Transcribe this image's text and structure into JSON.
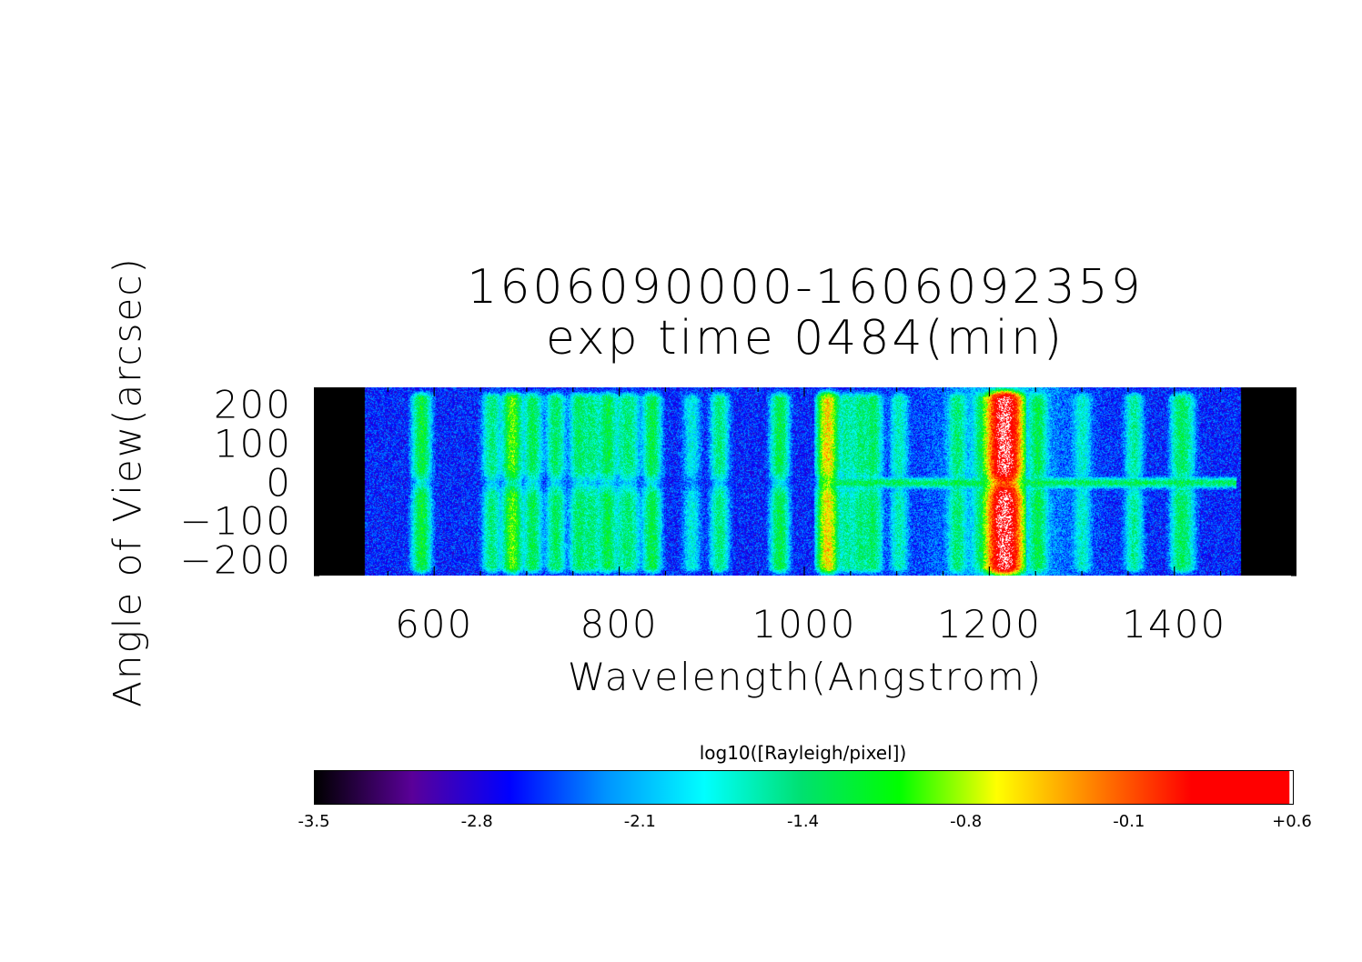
{
  "chart_data": {
    "type": "heatmap",
    "title": [
      "1606090000-1606092359",
      "exp time 0484(min)"
    ],
    "xlabel": "Wavelength(Angstrom)",
    "ylabel": "Angle of View(arcsec)",
    "xlim": [
      470,
      1532
    ],
    "ylim": [
      -240,
      245
    ],
    "x_ticks": [
      600,
      800,
      1000,
      1200,
      1400
    ],
    "y_ticks": [
      200,
      100,
      0,
      -100,
      -200
    ],
    "y_tick_labels": [
      "200",
      "100",
      "0",
      "−100",
      "−200"
    ],
    "detector_range": [
      525,
      1472
    ],
    "background_log": -2.6,
    "spatial_band": {
      "from": 1015,
      "to": 1467,
      "angle": 0,
      "peak_log": -1.4
    },
    "emission_lines": [
      {
        "wavelength": 586,
        "peak_log": -1.25
      },
      {
        "wavelength": 662,
        "peak_log": -1.5
      },
      {
        "wavelength": 684,
        "peak_log": -0.95
      },
      {
        "wavelength": 706,
        "peak_log": -1.35
      },
      {
        "wavelength": 731,
        "peak_log": -1.4
      },
      {
        "wavelength": 756,
        "peak_log": -1.4
      },
      {
        "wavelength": 770,
        "peak_log": -1.5
      },
      {
        "wavelength": 787,
        "peak_log": -1.3
      },
      {
        "wavelength": 804,
        "peak_log": -1.7
      },
      {
        "wavelength": 812,
        "peak_log": -1.6
      },
      {
        "wavelength": 835,
        "peak_log": -1.3
      },
      {
        "wavelength": 878,
        "peak_log": -1.9
      },
      {
        "wavelength": 908,
        "peak_log": -1.5
      },
      {
        "wavelength": 973,
        "peak_log": -1.3
      },
      {
        "wavelength": 1025,
        "peak_log": -0.5
      },
      {
        "wavelength": 1045,
        "peak_log": -1.6
      },
      {
        "wavelength": 1060,
        "peak_log": -1.5
      },
      {
        "wavelength": 1074,
        "peak_log": -1.4
      },
      {
        "wavelength": 1102,
        "peak_log": -1.7
      },
      {
        "wavelength": 1165,
        "peak_log": -1.5
      },
      {
        "wavelength": 1192,
        "peak_log": -1.4
      },
      {
        "wavelength": 1216,
        "peak_log": 0.6
      },
      {
        "wavelength": 1252,
        "peak_log": -1.35
      },
      {
        "wavelength": 1300,
        "peak_log": -1.8
      },
      {
        "wavelength": 1356,
        "peak_log": -1.6
      },
      {
        "wavelength": 1405,
        "peak_log": -1.5
      },
      {
        "wavelength": 1413,
        "peak_log": -1.7
      }
    ],
    "colorbar": {
      "label": "log10([Rayleigh/pixel])",
      "range": [
        -3.5,
        0.6
      ],
      "tick_labels": [
        "-3.5",
        "-2.8",
        "-2.1",
        "-1.4",
        "-0.8",
        "-0.1",
        "+0.6"
      ],
      "colors": [
        "#000000",
        "#5a0099",
        "#0000ff",
        "#0095ff",
        "#00ffff",
        "#00e070",
        "#00ff00",
        "#ffff00",
        "#ff8000",
        "#ff0000",
        "#ff0000"
      ]
    }
  }
}
